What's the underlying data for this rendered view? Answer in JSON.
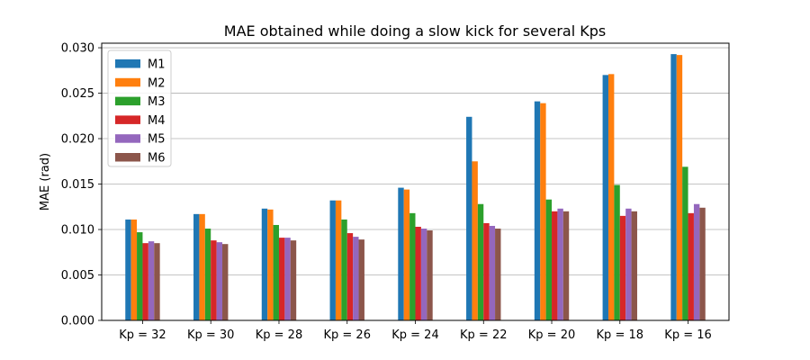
{
  "chart_data": {
    "type": "bar",
    "title": "MAE obtained while doing a slow kick for several Kps",
    "xlabel": "",
    "ylabel": "MAE (rad)",
    "ylim": [
      0,
      0.0305
    ],
    "yticks": [
      "0.000",
      "0.005",
      "0.010",
      "0.015",
      "0.020",
      "0.025",
      "0.030"
    ],
    "ytick_values": [
      0,
      0.005,
      0.01,
      0.015,
      0.02,
      0.025,
      0.03
    ],
    "grid": "horizontal",
    "legend_position": "top-left",
    "categories": [
      "Kp = 32",
      "Kp = 30",
      "Kp = 28",
      "Kp = 26",
      "Kp = 24",
      "Kp = 22",
      "Kp = 20",
      "Kp = 18",
      "Kp = 16"
    ],
    "series": [
      {
        "name": "M1",
        "color": "#1f77b4",
        "values": [
          0.0111,
          0.0117,
          0.0123,
          0.0132,
          0.0146,
          0.0224,
          0.0241,
          0.027,
          0.0293
        ]
      },
      {
        "name": "M2",
        "color": "#ff7f0e",
        "values": [
          0.0111,
          0.0117,
          0.0122,
          0.0132,
          0.0144,
          0.0175,
          0.0239,
          0.0271,
          0.0292
        ]
      },
      {
        "name": "M3",
        "color": "#2ca02c",
        "values": [
          0.0097,
          0.0101,
          0.0105,
          0.0111,
          0.0118,
          0.0128,
          0.0133,
          0.0149,
          0.0169
        ]
      },
      {
        "name": "M4",
        "color": "#d62728",
        "values": [
          0.0085,
          0.0088,
          0.0091,
          0.0096,
          0.0103,
          0.0107,
          0.012,
          0.0115,
          0.0118
        ]
      },
      {
        "name": "M5",
        "color": "#9467bd",
        "values": [
          0.0087,
          0.0086,
          0.0091,
          0.0092,
          0.0101,
          0.0104,
          0.0123,
          0.0123,
          0.0128
        ]
      },
      {
        "name": "M6",
        "color": "#8c564b",
        "values": [
          0.0085,
          0.0084,
          0.0088,
          0.0089,
          0.0099,
          0.0101,
          0.012,
          0.012,
          0.0124
        ]
      }
    ]
  }
}
